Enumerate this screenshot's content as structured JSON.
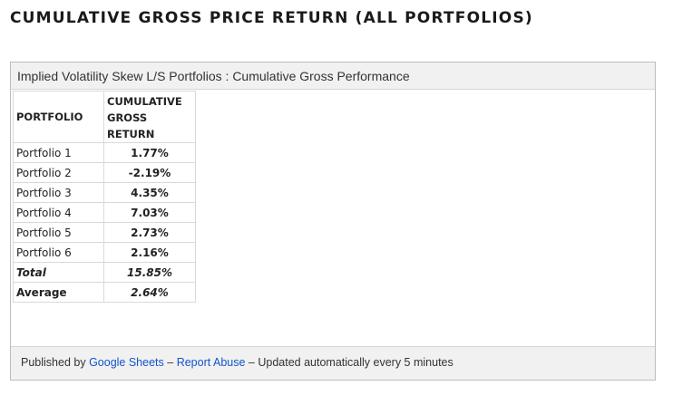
{
  "page": {
    "heading": "CUMULATIVE GROSS PRICE RETURN (ALL PORTFOLIOS)"
  },
  "sheet": {
    "title": "Implied Volatility Skew L/S Portfolios : Cumulative Gross Performance",
    "headers": {
      "portfolio": "PORTFOLIO",
      "return_line1": "CUMULATIVE",
      "return_line2": "GROSS",
      "return_line3": "RETURN"
    },
    "rows": [
      {
        "name": "Portfolio 1",
        "value": "1.77%"
      },
      {
        "name": "Portfolio 2",
        "value": "-2.19%"
      },
      {
        "name": "Portfolio 3",
        "value": "4.35%"
      },
      {
        "name": "Portfolio 4",
        "value": "7.03%"
      },
      {
        "name": "Portfolio 5",
        "value": "2.73%"
      },
      {
        "name": "Portfolio 6",
        "value": "2.16%"
      }
    ],
    "total": {
      "label": "Total",
      "value": "15.85%"
    },
    "average": {
      "label": "Average",
      "value": "2.64%"
    }
  },
  "footer": {
    "published_by": "Published by",
    "google_sheets": "Google Sheets",
    "sep1": "–",
    "report_abuse": "Report Abuse",
    "sep2": "–",
    "updated": "Updated automatically every 5 minutes"
  },
  "colors": {
    "positive": "#1e7e34",
    "negative": "#c0392b",
    "link": "#1155cc"
  }
}
